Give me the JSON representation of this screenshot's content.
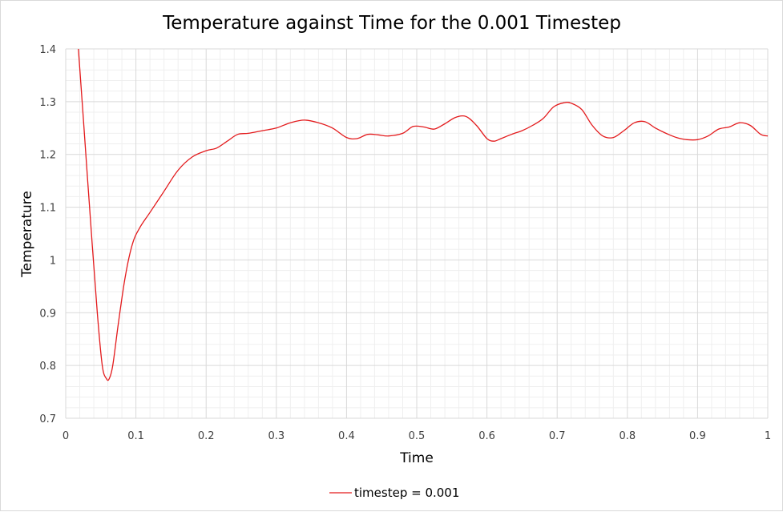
{
  "chart_data": {
    "type": "line",
    "title": "Temperature against Time for the 0.001 Timestep",
    "xlabel": "Time",
    "ylabel": "Temperature",
    "xlim": [
      0,
      1
    ],
    "ylim": [
      0.7,
      1.4
    ],
    "x_ticks": [
      "0",
      "0.1",
      "0.2",
      "0.3",
      "0.4",
      "0.5",
      "0.6",
      "0.7",
      "0.8",
      "0.9",
      "1"
    ],
    "y_ticks": [
      "0.7",
      "0.8",
      "0.9",
      "1",
      "1.1",
      "1.2",
      "1.3",
      "1.4"
    ],
    "grid": true,
    "legend_position": "bottom",
    "series": [
      {
        "name": "timestep = 0.001",
        "color": "#e31a1c",
        "x": [
          0.018,
          0.025,
          0.035,
          0.045,
          0.052,
          0.058,
          0.062,
          0.067,
          0.075,
          0.085,
          0.095,
          0.105,
          0.12,
          0.14,
          0.16,
          0.18,
          0.2,
          0.215,
          0.23,
          0.245,
          0.26,
          0.28,
          0.3,
          0.32,
          0.34,
          0.36,
          0.38,
          0.4,
          0.415,
          0.43,
          0.445,
          0.46,
          0.48,
          0.495,
          0.51,
          0.525,
          0.54,
          0.555,
          0.57,
          0.585,
          0.6,
          0.61,
          0.62,
          0.635,
          0.65,
          0.665,
          0.68,
          0.695,
          0.71,
          0.72,
          0.735,
          0.75,
          0.765,
          0.78,
          0.795,
          0.81,
          0.825,
          0.84,
          0.855,
          0.87,
          0.885,
          0.9,
          0.915,
          0.93,
          0.945,
          0.96,
          0.975,
          0.99,
          1.0
        ],
        "values": [
          1.4,
          1.27,
          1.08,
          0.9,
          0.8,
          0.775,
          0.775,
          0.8,
          0.88,
          0.97,
          1.03,
          1.06,
          1.09,
          1.13,
          1.17,
          1.195,
          1.207,
          1.212,
          1.225,
          1.238,
          1.24,
          1.245,
          1.25,
          1.26,
          1.265,
          1.26,
          1.25,
          1.232,
          1.23,
          1.238,
          1.237,
          1.235,
          1.24,
          1.253,
          1.252,
          1.248,
          1.258,
          1.27,
          1.272,
          1.255,
          1.23,
          1.225,
          1.23,
          1.238,
          1.245,
          1.255,
          1.268,
          1.29,
          1.298,
          1.297,
          1.285,
          1.255,
          1.235,
          1.232,
          1.245,
          1.26,
          1.262,
          1.25,
          1.24,
          1.232,
          1.228,
          1.228,
          1.235,
          1.248,
          1.252,
          1.26,
          1.255,
          1.238,
          1.235
        ]
      }
    ]
  }
}
